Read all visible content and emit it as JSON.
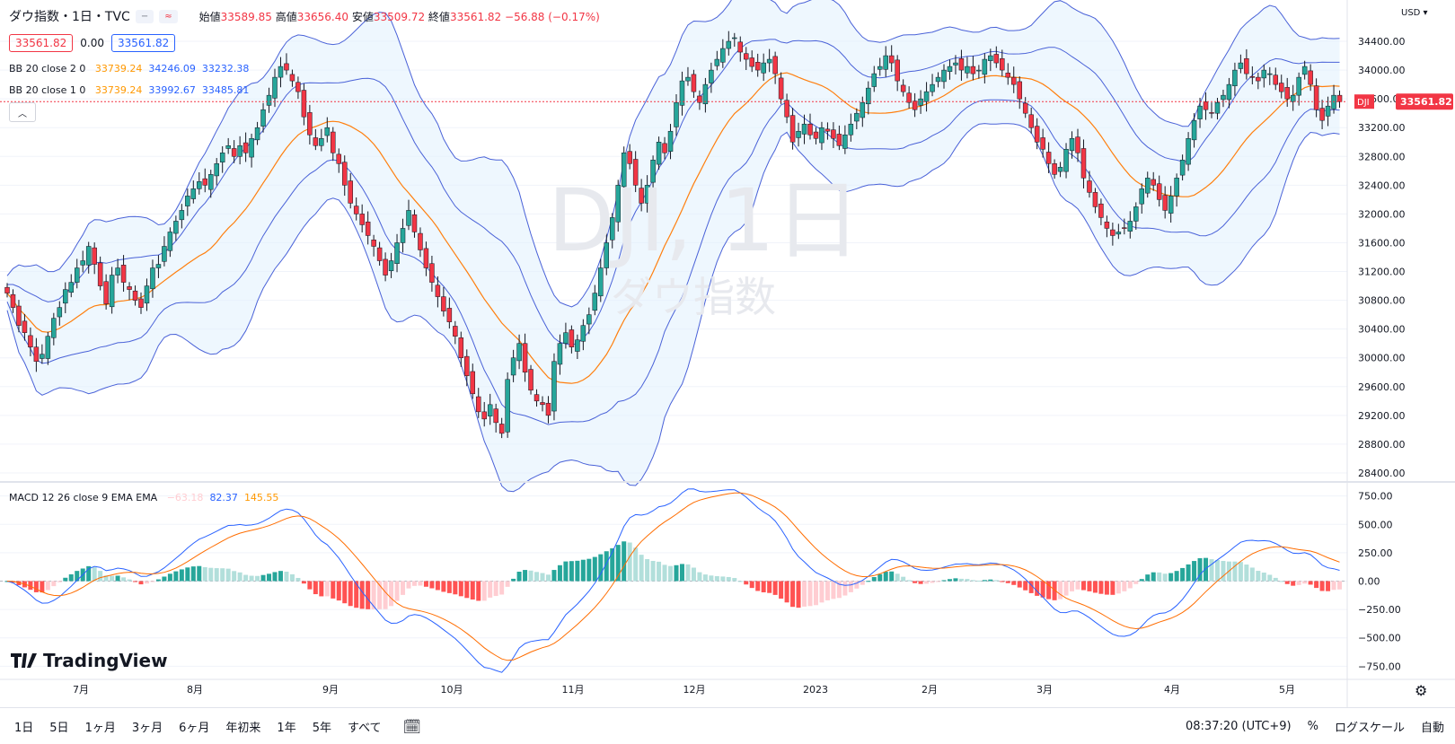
{
  "header": {
    "symbol_title": "ダウ指数・1日・TVC",
    "pill1": "−",
    "pill2": "≈",
    "ohlc": {
      "open_label": "始値",
      "open": "33589.85",
      "high_label": "高値",
      "high": "33656.40",
      "low_label": "安値",
      "low": "33509.72",
      "close_label": "終値",
      "close": "33561.82",
      "change": "−56.88 (−0.17%)"
    },
    "bid": "33561.82",
    "spread": "0.00",
    "ask": "33561.82"
  },
  "indicators": {
    "bb2": {
      "label": "BB 20 close 2 0",
      "basis": "33739.24",
      "upper": "34246.09",
      "lower": "33232.38"
    },
    "bb1": {
      "label": "BB 20 close 1 0",
      "basis": "33739.24",
      "upper": "33992.67",
      "lower": "33485.81"
    },
    "macd": {
      "label": "MACD 12 26 close 9 EMA EMA",
      "hist": "−63.18",
      "macd": "82.37",
      "signal": "145.55"
    }
  },
  "watermark": {
    "big": "DJI, 1日",
    "small": "ダウ指数"
  },
  "currency": "USD",
  "last_price_tag": {
    "symbol": "DJI",
    "price": "33561.82"
  },
  "price_axis": [
    "34400.00",
    "34000.00",
    "33600.00",
    "33200.00",
    "32800.00",
    "32400.00",
    "32000.00",
    "31600.00",
    "31200.00",
    "30800.00",
    "30400.00",
    "30000.00",
    "29600.00",
    "29200.00",
    "28800.00",
    "28400.00"
  ],
  "macd_axis": [
    "750.00",
    "500.00",
    "250.00",
    "0.00",
    "−250.00",
    "−500.00",
    "−750.00"
  ],
  "time_axis": [
    "7月",
    "8月",
    "9月",
    "10月",
    "11月",
    "12月",
    "2023",
    "2月",
    "3月",
    "4月",
    "5月"
  ],
  "logo": "TradingView",
  "timeframes": [
    "1日",
    "5日",
    "1ヶ月",
    "3ヶ月",
    "6ヶ月",
    "年初来",
    "1年",
    "5年",
    "すべて"
  ],
  "bottom_right": {
    "time": "08:37:20 (UTC+9)",
    "percent": "%",
    "log": "ログスケール",
    "auto": "自動"
  },
  "colors": {
    "up": "#26a69a",
    "down": "#f23645",
    "bb_outer": "#4a62d8",
    "bb_basis": "#ff7f0e",
    "macd": "#2962ff",
    "signal": "#ff6d00"
  },
  "chart_data": {
    "type": "candlestick",
    "close_series": [
      30900,
      30700,
      30450,
      30350,
      30150,
      29950,
      30050,
      30300,
      30550,
      30700,
      30950,
      31050,
      31250,
      31350,
      31550,
      31300,
      31000,
      30750,
      31150,
      31250,
      31050,
      30950,
      30800,
      30700,
      31000,
      31250,
      31300,
      31550,
      31750,
      31900,
      32050,
      32250,
      32350,
      32450,
      32400,
      32550,
      32700,
      32850,
      32950,
      32800,
      32950,
      32850,
      33050,
      33200,
      33450,
      33650,
      33900,
      34050,
      34000,
      33850,
      33700,
      33350,
      33100,
      32950,
      33050,
      33200,
      32850,
      32700,
      32400,
      32150,
      32000,
      31850,
      31700,
      31550,
      31350,
      31150,
      31350,
      31600,
      31800,
      32050,
      31750,
      31500,
      31250,
      31050,
      30850,
      30650,
      30500,
      30300,
      30000,
      29750,
      29500,
      29250,
      29150,
      29350,
      29100,
      28950,
      29700,
      30000,
      30200,
      29800,
      29550,
      29400,
      29350,
      29200,
      29950,
      30200,
      30350,
      30150,
      30250,
      30450,
      30600,
      30900,
      31250,
      31600,
      31950,
      32400,
      32850,
      32700,
      32400,
      32150,
      32400,
      32750,
      33000,
      32850,
      33150,
      33550,
      33850,
      33900,
      33700,
      33550,
      33800,
      34000,
      34150,
      34300,
      34400,
      34450,
      34250,
      34150,
      34050,
      34000,
      34100,
      34150,
      33950,
      33600,
      33350,
      33000,
      33150,
      33250,
      33100,
      33050,
      33200,
      33150,
      33050,
      32950,
      33100,
      33250,
      33400,
      33550,
      33750,
      33950,
      34050,
      34200,
      34100,
      33850,
      33700,
      33550,
      33450,
      33600,
      33700,
      33800,
      33900,
      34000,
      34050,
      34100,
      34000,
      34050,
      33950,
      34000,
      34150,
      34200,
      34100,
      34000,
      33900,
      33800,
      33600,
      33400,
      33200,
      33000,
      32900,
      32700,
      32550,
      32650,
      32900,
      33050,
      32850,
      32500,
      32300,
      32100,
      31950,
      31800,
      31700,
      31750,
      31800,
      31900,
      32100,
      32350,
      32500,
      32400,
      32200,
      32050,
      32250,
      32500,
      32750,
      33050,
      33300,
      33500,
      33450,
      33400,
      33550,
      33650,
      33800,
      34000,
      34100,
      33950,
      33900,
      33850,
      34000,
      33950,
      33800,
      33700,
      33600,
      33650,
      33900,
      34050,
      33800,
      33450,
      33300,
      33500,
      33650,
      33560
    ],
    "ohlc_last": {
      "open": 33589.85,
      "high": 33656.4,
      "low": 33509.72,
      "close": 33561.82
    },
    "bollinger_last": {
      "basis": 33739.24,
      "upper_2sd": 34246.09,
      "lower_2sd": 33232.38,
      "upper_1sd": 33992.67,
      "lower_1sd": 33485.81
    },
    "macd_last": {
      "histogram": -63.18,
      "macd": 82.37,
      "signal": 145.55
    },
    "y_range": [
      28300,
      34600
    ],
    "macd_range": [
      -850,
      850
    ]
  }
}
